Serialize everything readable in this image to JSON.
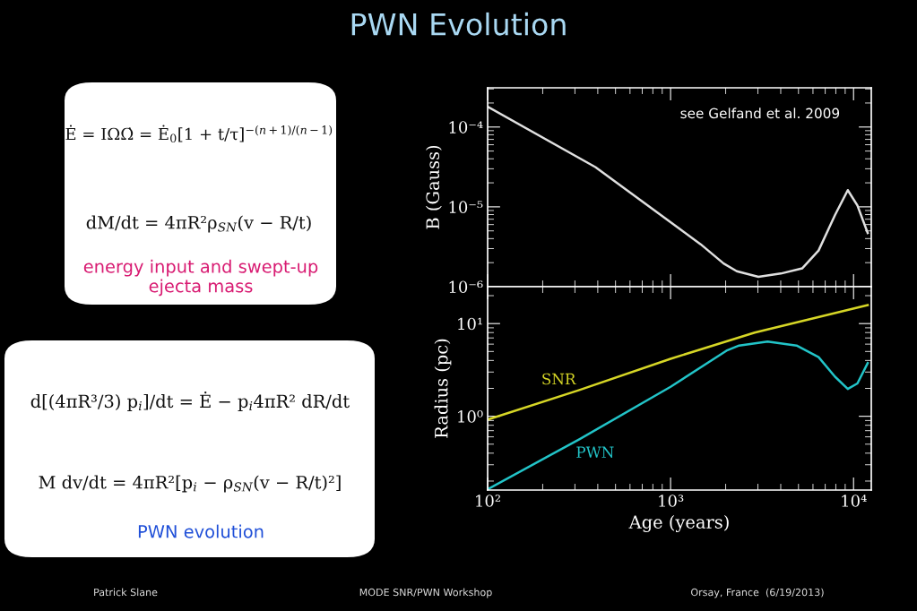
{
  "chart_data": [
    {
      "type": "other",
      "title": "PWN Evolution",
      "annotations": [
        "Ė = IΩΩ̇ = Ė$_{0}$[1 + t/τ]$^{−(n+1)/(n−1)}$",
        "dM/dt = 4πR²ρ$_{SN}$(v − R/t)",
        "energy input and swept-up\nejecta mass",
        "d[(4πR³/3) p$_{i}$]/dt = Ė − p$_{i}$4πR² dR/dt",
        "M dv/dt = 4πR²[p$_{i}$ − ρ$_{SN}$(v − R/t)²]",
        "PWN evolution",
        "Patrick Slane",
        "MODE SNR/PWN Workshop",
        "Orsay, France  (6/19/2013)"
      ]
    },
    {
      "type": "line",
      "ylabel": "B (Gauss)",
      "log": "xy",
      "grid": false,
      "legend": false,
      "marker": "none",
      "line_style": "solid",
      "tick_labels": "y",
      "xlim": [
        100,
        12500
      ],
      "xticks": [
        {
          "value": 100,
          "label": null
        },
        {
          "value": 1000,
          "label": null
        },
        {
          "value": 10000,
          "label": null
        }
      ],
      "ylim": [
        1e-06,
        0.00031
      ],
      "yticks": [
        {
          "value": 1e-06,
          "label": "10⁻⁶"
        },
        {
          "value": 1e-05,
          "label": "10⁻⁵"
        },
        {
          "value": 0.0001,
          "label": "10⁻⁴"
        }
      ],
      "annotations": [
        "see Gelfand et al. 2009"
      ],
      "series": [
        {
          "color": "#e0e0e0",
          "x": [
            100,
            388,
            1460,
            1950,
            2300,
            3020,
            4000,
            5250,
            6440,
            7920,
            9300,
            10500,
            11950
          ],
          "values": [
            0.00018,
            3.15e-05,
            3.4e-06,
            1.95e-06,
            1.56e-06,
            1.33e-06,
            1.46e-06,
            1.7e-06,
            2.84e-06,
            7.9e-06,
            1.62e-05,
            1.04e-05,
            4.7e-06
          ]
        }
      ]
    },
    {
      "type": "line",
      "xlabel": "Age (years)",
      "ylabel": "Radius (pc)",
      "log": "xy",
      "grid": false,
      "legend": false,
      "marker": "none",
      "line_style": "solid",
      "xlim": [
        100,
        12500
      ],
      "xticks": [
        {
          "value": 100,
          "label": "10²"
        },
        {
          "value": 1000,
          "label": "10³"
        },
        {
          "value": 10000,
          "label": "10⁴"
        }
      ],
      "ylim": [
        0.16,
        25
      ],
      "yticks": [
        {
          "value": 1,
          "label": "10⁰"
        },
        {
          "value": 10,
          "label": "10¹"
        }
      ],
      "series": [
        {
          "name": "SNR",
          "color": "#d6d626",
          "x": [
            100,
            317,
            1000,
            2880,
            11950
          ],
          "values": [
            0.92,
            1.92,
            4.17,
            8.0,
            15.8
          ]
        },
        {
          "name": "PWN",
          "color": "#22c4c8",
          "x": [
            100,
            317,
            1000,
            2020,
            2370,
            3390,
            4880,
            6440,
            7920,
            9300,
            10500,
            11950
          ],
          "values": [
            0.163,
            0.565,
            2.08,
            5.1,
            5.8,
            6.4,
            5.8,
            4.35,
            2.67,
            1.97,
            2.26,
            3.75
          ]
        }
      ]
    }
  ]
}
